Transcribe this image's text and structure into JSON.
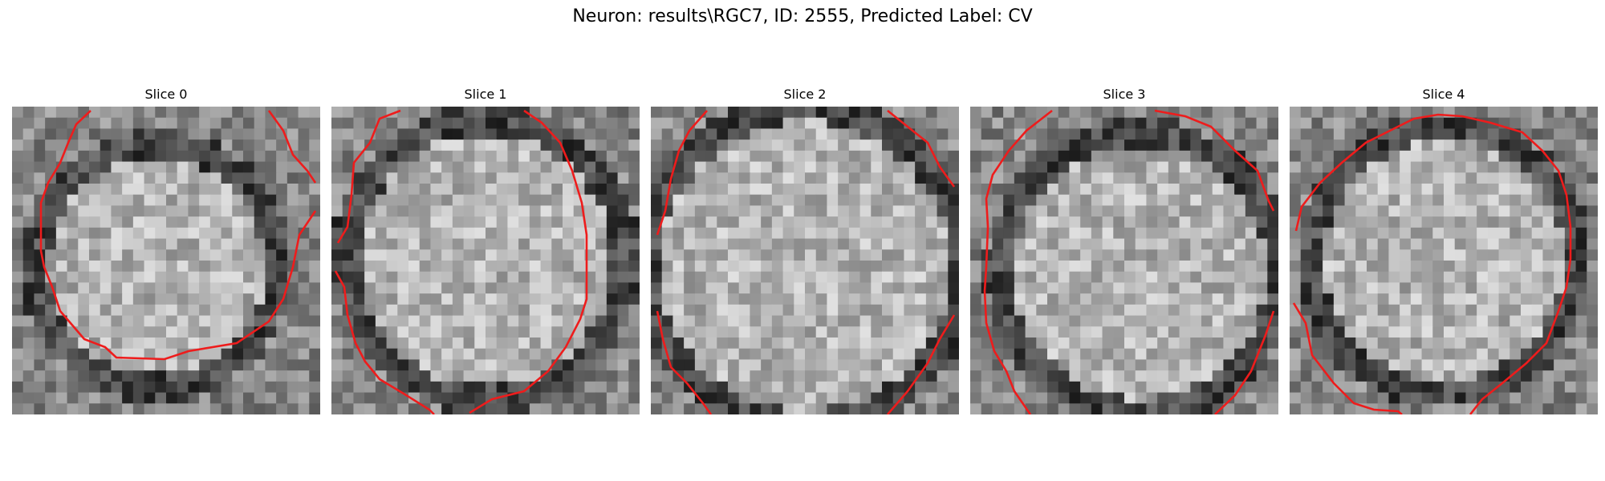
{
  "figure": {
    "title": "Neuron: results\\RGC7, ID: 2555, Predicted Label: CV"
  },
  "colors": {
    "contour": "#ee1c1c",
    "background": "#ffffff"
  },
  "panels": [
    {
      "title": "Slice 0"
    },
    {
      "title": "Slice 1"
    },
    {
      "title": "Slice 2"
    },
    {
      "title": "Slice 3"
    },
    {
      "title": "Slice 4"
    }
  ]
}
